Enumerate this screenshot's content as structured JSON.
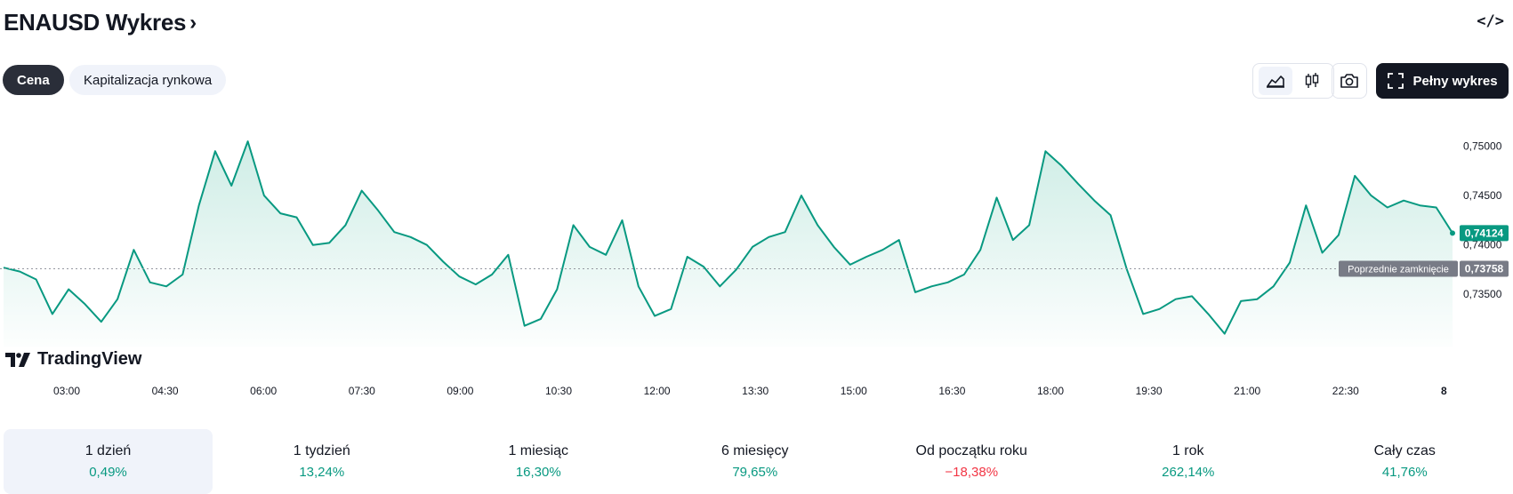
{
  "header": {
    "title": "ENAUSD Wykres",
    "embed_label": "</>"
  },
  "tabs": [
    {
      "label": "Cena",
      "active": true
    },
    {
      "label": "Kapitalizacja rynkowa",
      "active": false
    }
  ],
  "toolbar": {
    "area_icon": "area-chart-icon",
    "candles_icon": "candlestick-icon",
    "camera_icon": "camera-icon",
    "full_chart_label": "Pełny wykres"
  },
  "watermark": "TradingView",
  "colors": {
    "line": "#089981",
    "fill_top": "#c9ebe3",
    "positive": "#089981",
    "negative": "#f23645",
    "price_badge": "#089981",
    "prev_badge": "#787b86"
  },
  "chart_data": {
    "type": "area",
    "x_ticks": [
      "03:00",
      "04:30",
      "06:00",
      "07:30",
      "09:00",
      "10:30",
      "12:00",
      "13:30",
      "15:00",
      "16:30",
      "18:00",
      "19:30",
      "21:00",
      "22:30",
      "8"
    ],
    "y_ticks": [
      "0,75000",
      "0,74500",
      "0,74000",
      "0,73500"
    ],
    "ylim": [
      0.7297,
      0.7533
    ],
    "x": [
      "02:00",
      "02:15",
      "02:30",
      "02:45",
      "03:00",
      "03:15",
      "03:30",
      "03:45",
      "04:00",
      "04:15",
      "04:30",
      "04:45",
      "05:00",
      "05:15",
      "05:30",
      "05:45",
      "06:00",
      "06:15",
      "06:30",
      "06:45",
      "07:00",
      "07:15",
      "07:30",
      "07:45",
      "08:00",
      "08:15",
      "08:30",
      "08:45",
      "09:00",
      "09:15",
      "09:30",
      "09:45",
      "10:00",
      "10:15",
      "10:30",
      "10:45",
      "11:00",
      "11:15",
      "11:30",
      "11:45",
      "12:00",
      "12:15",
      "12:30",
      "12:45",
      "13:00",
      "13:15",
      "13:30",
      "13:45",
      "14:00",
      "14:15",
      "14:30",
      "14:45",
      "15:00",
      "15:15",
      "15:30",
      "15:45",
      "16:00",
      "16:15",
      "16:30",
      "16:45",
      "17:00",
      "17:15",
      "17:30",
      "17:45",
      "18:00",
      "18:15",
      "18:30",
      "18:45",
      "19:00",
      "19:15",
      "19:30",
      "19:45",
      "20:00",
      "20:15",
      "20:30",
      "20:45",
      "21:00",
      "21:15",
      "21:30",
      "21:45",
      "22:00",
      "22:15",
      "22:30",
      "22:45",
      "23:00",
      "23:15",
      "23:30",
      "23:45",
      "00:00",
      "00:15"
    ],
    "values": [
      0.7377,
      0.7373,
      0.7365,
      0.733,
      0.7355,
      0.734,
      0.7322,
      0.7345,
      0.7395,
      0.7362,
      0.7358,
      0.737,
      0.744,
      0.7495,
      0.746,
      0.7505,
      0.745,
      0.7432,
      0.7428,
      0.74,
      0.7402,
      0.742,
      0.7455,
      0.7435,
      0.7413,
      0.7408,
      0.74,
      0.7383,
      0.7368,
      0.736,
      0.737,
      0.739,
      0.7318,
      0.7325,
      0.7355,
      0.742,
      0.7398,
      0.739,
      0.7425,
      0.7358,
      0.7328,
      0.7335,
      0.7388,
      0.7378,
      0.7358,
      0.7375,
      0.7398,
      0.7408,
      0.7413,
      0.745,
      0.742,
      0.7398,
      0.738,
      0.7388,
      0.7395,
      0.7405,
      0.7352,
      0.7358,
      0.7362,
      0.737,
      0.7395,
      0.7448,
      0.7405,
      0.742,
      0.7495,
      0.748,
      0.7462,
      0.7445,
      0.743,
      0.7375,
      0.733,
      0.7335,
      0.7345,
      0.7348,
      0.733,
      0.731,
      0.7343,
      0.7345,
      0.7358,
      0.7382,
      0.744,
      0.7392,
      0.741,
      0.747,
      0.745,
      0.7438,
      0.7445,
      0.744,
      0.7438,
      0.7412
    ],
    "previous_close": 0.73758,
    "previous_close_label": "Poprzednie zamknięcie",
    "previous_close_text": "0,73758",
    "last_price_text": "0,74124",
    "grid": false
  },
  "periods": [
    {
      "label": "1 dzień",
      "value": "0,49%",
      "selected": true,
      "sign": "positive"
    },
    {
      "label": "1 tydzień",
      "value": "13,24%",
      "selected": false,
      "sign": "positive"
    },
    {
      "label": "1 miesiąc",
      "value": "16,30%",
      "selected": false,
      "sign": "positive"
    },
    {
      "label": "6 miesięcy",
      "value": "79,65%",
      "selected": false,
      "sign": "positive"
    },
    {
      "label": "Od początku roku",
      "value": "−18,38%",
      "selected": false,
      "sign": "negative"
    },
    {
      "label": "1 rok",
      "value": "262,14%",
      "selected": false,
      "sign": "positive"
    },
    {
      "label": "Cały czas",
      "value": "41,76%",
      "selected": false,
      "sign": "positive"
    }
  ]
}
